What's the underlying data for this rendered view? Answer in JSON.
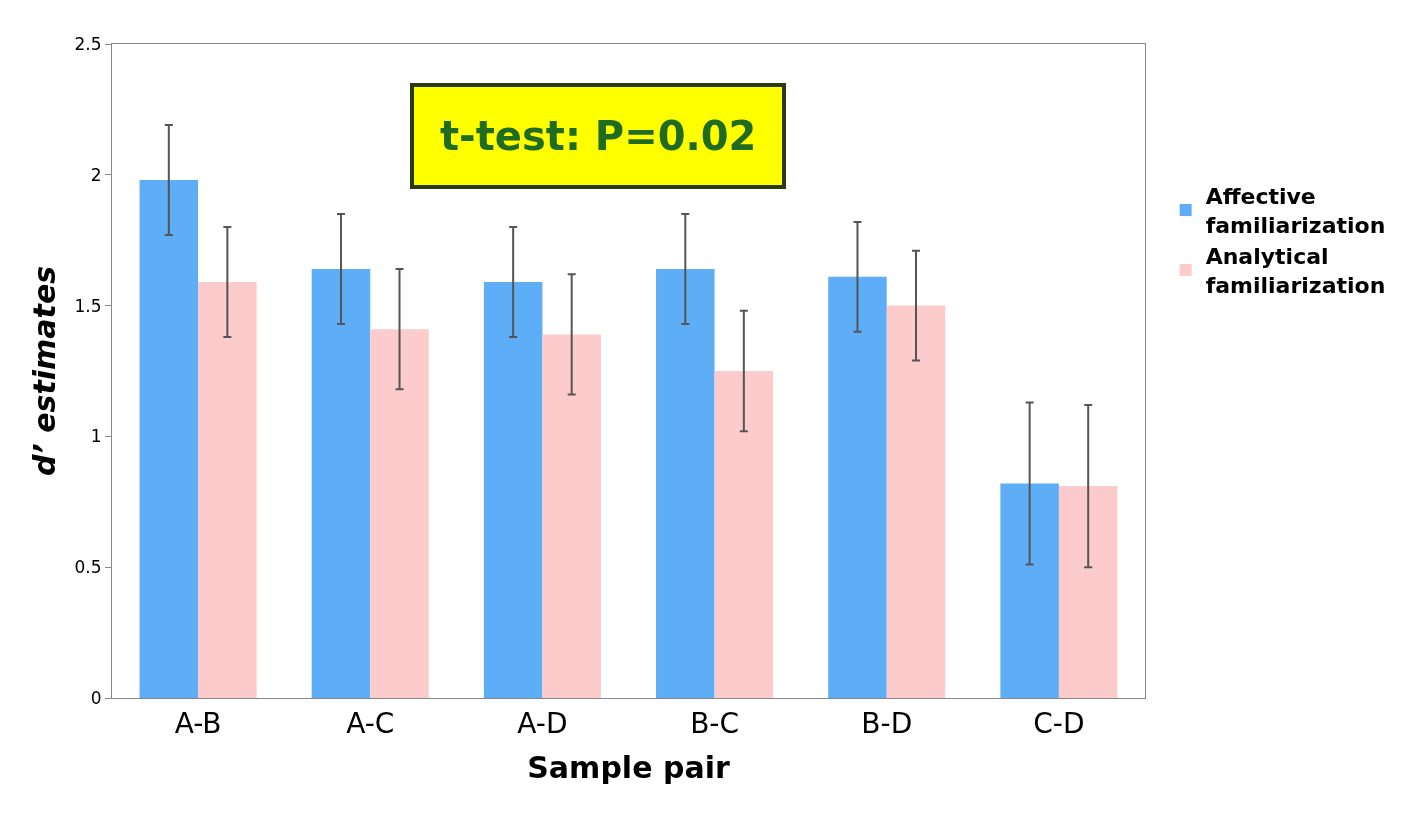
{
  "chart_data": {
    "type": "bar",
    "categories": [
      "A-B",
      "A-C",
      "A-D",
      "B-C",
      "B-D",
      "C-D"
    ],
    "series": [
      {
        "name": "Affective familiarization",
        "color": "#5eaef7",
        "values": [
          1.98,
          1.64,
          1.59,
          1.64,
          1.61,
          0.82
        ],
        "errors": [
          0.21,
          0.21,
          0.21,
          0.21,
          0.21,
          0.31
        ]
      },
      {
        "name": "Analytical familiarization",
        "color": "#fccbcb",
        "values": [
          1.59,
          1.41,
          1.39,
          1.25,
          1.5,
          0.81
        ],
        "errors": [
          0.21,
          0.23,
          0.23,
          0.23,
          0.21,
          0.31
        ]
      }
    ],
    "xlabel": "Sample pair",
    "ylabel": "d’ estimates",
    "ylim": [
      0,
      2.5
    ],
    "yticks": [
      0,
      0.5,
      1,
      1.5,
      2,
      2.5
    ],
    "annotations": [
      "t-test: P=0.02"
    ],
    "legend": "right"
  }
}
